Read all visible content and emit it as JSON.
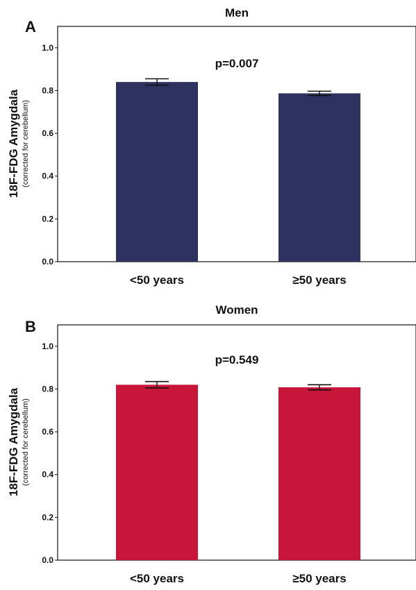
{
  "chart_data": [
    {
      "type": "bar",
      "panel_label": "A",
      "title": "Men",
      "ylabel": "18F-FDG Amygdala",
      "ylabel_sub": "(corrected for cerebellum)",
      "categories": [
        "<50 years",
        "≥50 years"
      ],
      "values": [
        0.84,
        0.787
      ],
      "errors": [
        0.015,
        0.01
      ],
      "ylim": [
        0,
        1.1
      ],
      "yticks": [
        "0.0",
        "0.2",
        "0.4",
        "0.6",
        "0.8",
        "1.0"
      ],
      "annotation": "p=0.007",
      "color": "#2d3261",
      "grid": false
    },
    {
      "type": "bar",
      "panel_label": "B",
      "title": "Women",
      "ylabel": "18F-FDG Amygdala",
      "ylabel_sub": "(corrected for cerebellum)",
      "categories": [
        "<50 years",
        "≥50 years"
      ],
      "values": [
        0.82,
        0.808
      ],
      "errors": [
        0.015,
        0.012
      ],
      "ylim": [
        0,
        1.1
      ],
      "yticks": [
        "0.0",
        "0.2",
        "0.4",
        "0.6",
        "0.8",
        "1.0"
      ],
      "annotation": "p=0.549",
      "color": "#c8163a",
      "grid": false
    }
  ]
}
